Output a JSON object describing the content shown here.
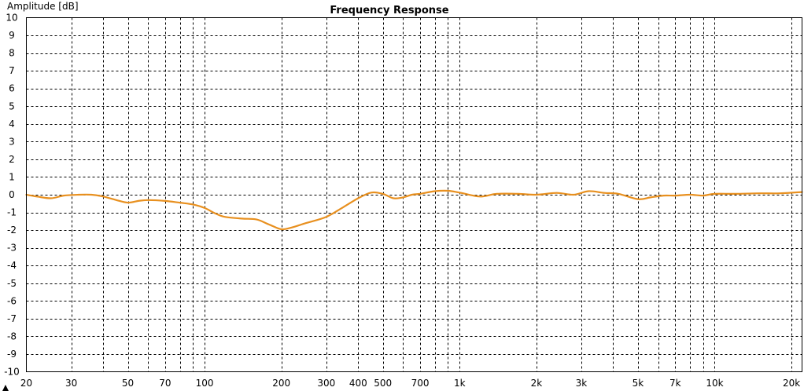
{
  "chart_data": {
    "type": "line",
    "title": "Frequency Response",
    "ylabel": "Amplitude [dB]",
    "xlabel": "",
    "x_scale": "log",
    "xlim": [
      20,
      22000
    ],
    "ylim": [
      -10,
      10
    ],
    "grid": true,
    "y_ticks": [
      10,
      9,
      8,
      7,
      6,
      5,
      4,
      3,
      2,
      1,
      0,
      -1,
      -2,
      -3,
      -4,
      -5,
      -6,
      -7,
      -8,
      -9,
      -10
    ],
    "x_ticks": [
      {
        "value": 20,
        "label": "20"
      },
      {
        "value": 30,
        "label": "30"
      },
      {
        "value": 50,
        "label": "50"
      },
      {
        "value": 70,
        "label": "70"
      },
      {
        "value": 100,
        "label": "100"
      },
      {
        "value": 200,
        "label": "200"
      },
      {
        "value": 300,
        "label": "300"
      },
      {
        "value": 400,
        "label": "400"
      },
      {
        "value": 500,
        "label": "500"
      },
      {
        "value": 700,
        "label": "700"
      },
      {
        "value": 1000,
        "label": "1k"
      },
      {
        "value": 2000,
        "label": "2k"
      },
      {
        "value": 3000,
        "label": "3k"
      },
      {
        "value": 5000,
        "label": "5k"
      },
      {
        "value": 7000,
        "label": "7k"
      },
      {
        "value": 10000,
        "label": "10k"
      },
      {
        "value": 20000,
        "label": "20k"
      }
    ],
    "minor_gridlines": [
      40,
      60,
      80,
      90,
      600,
      800,
      900,
      4000,
      6000,
      8000,
      9000
    ],
    "series": [
      {
        "color": "#e8901f",
        "x": [
          20,
          22,
          25,
          28,
          32,
          36,
          40,
          45,
          50,
          55,
          60,
          70,
          80,
          90,
          100,
          110,
          120,
          140,
          160,
          180,
          200,
          220,
          250,
          300,
          350,
          400,
          450,
          500,
          550,
          600,
          650,
          700,
          800,
          900,
          1000,
          1200,
          1400,
          1700,
          2000,
          2400,
          2800,
          3200,
          3700,
          4200,
          5000,
          5600,
          6300,
          7000,
          8000,
          9000,
          10000,
          12000,
          15000,
          18000,
          22000
        ],
        "y": [
          0.0,
          -0.1,
          -0.2,
          -0.05,
          0.0,
          0.0,
          -0.1,
          -0.3,
          -0.45,
          -0.35,
          -0.3,
          -0.35,
          -0.45,
          -0.55,
          -0.75,
          -1.05,
          -1.25,
          -1.35,
          -1.4,
          -1.7,
          -1.95,
          -1.85,
          -1.6,
          -1.25,
          -0.7,
          -0.2,
          0.12,
          0.05,
          -0.2,
          -0.15,
          0.0,
          0.05,
          0.2,
          0.22,
          0.12,
          -0.1,
          0.05,
          0.05,
          0.0,
          0.1,
          0.0,
          0.2,
          0.1,
          0.05,
          -0.25,
          -0.15,
          -0.05,
          -0.05,
          0.0,
          -0.05,
          0.05,
          0.05,
          0.08,
          0.08,
          0.15
        ]
      }
    ]
  }
}
